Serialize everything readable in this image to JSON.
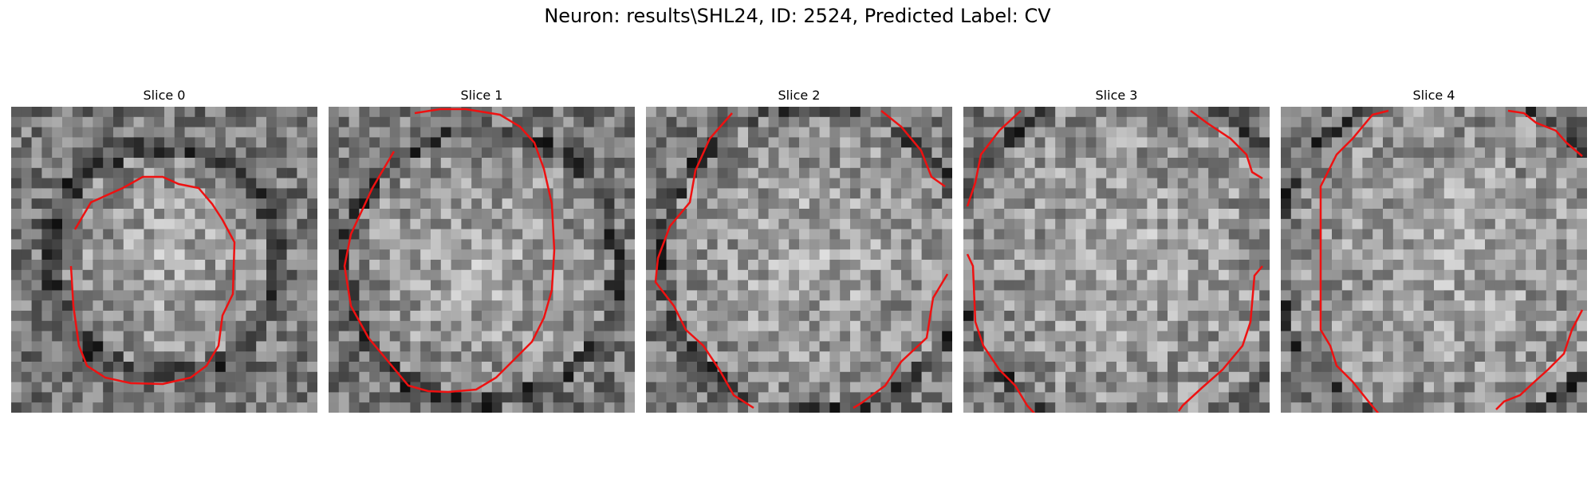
{
  "figure": {
    "title": "Neuron: results\\SHL24, ID: 2524, Predicted Label: CV"
  },
  "panels": [
    {
      "title": "Slice 0"
    },
    {
      "title": "Slice 1"
    },
    {
      "title": "Slice 2"
    },
    {
      "title": "Slice 3"
    },
    {
      "title": "Slice 4"
    }
  ],
  "colors": {
    "contour": "#ee1111",
    "background": "#ffffff"
  }
}
